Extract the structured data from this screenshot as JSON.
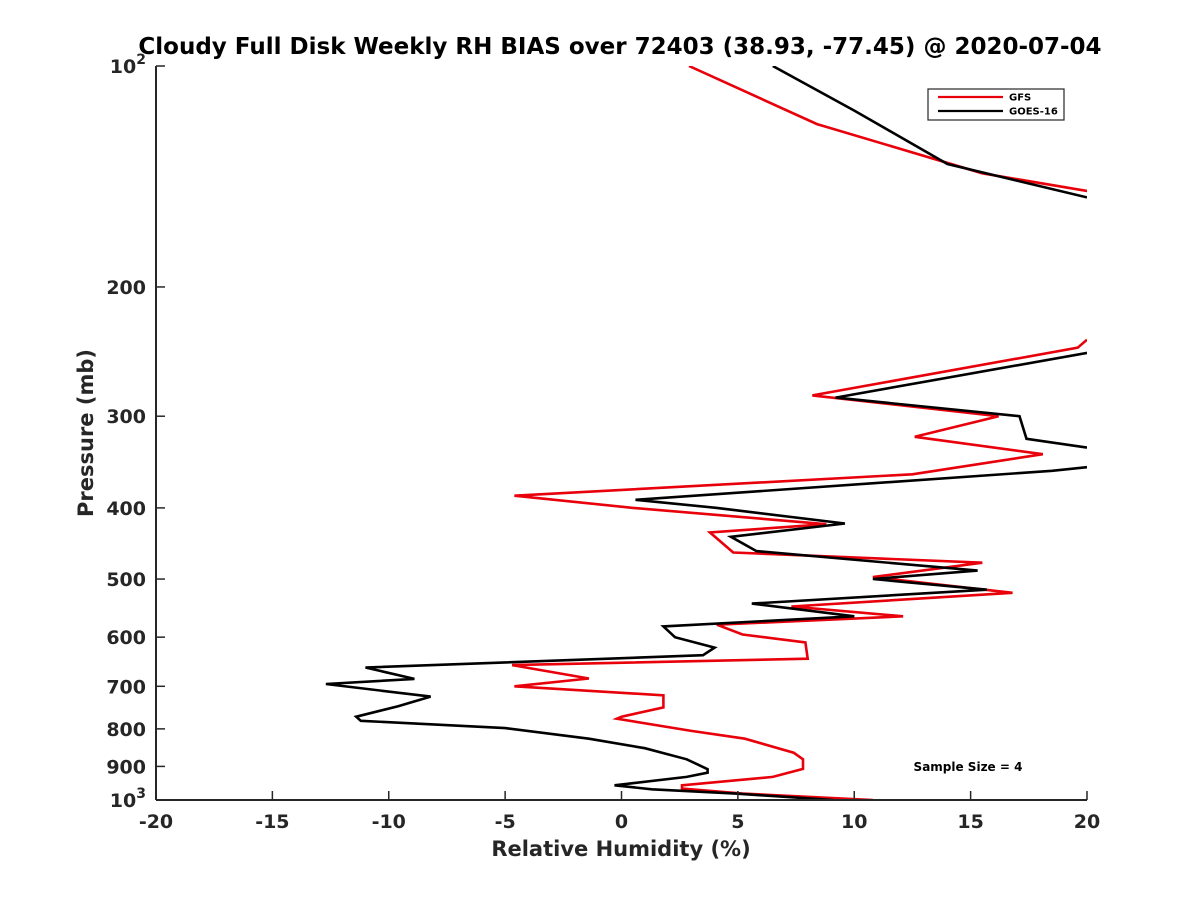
{
  "chart_data": {
    "type": "line",
    "title": "Cloudy Full Disk Weekly RH BIAS over 72403 (38.93, -77.45) @ 2020-07-04",
    "xlabel": "Relative Humidity (%)",
    "ylabel": "Pressure (mb)",
    "xlim": [
      -20,
      20
    ],
    "ylim": [
      100,
      1000
    ],
    "yscale": "log",
    "y_reversed": true,
    "grid": false,
    "legend_position": "top-right",
    "x_ticks": [
      {
        "value": -20,
        "label": "-20"
      },
      {
        "value": -15,
        "label": "-15"
      },
      {
        "value": -10,
        "label": "-10"
      },
      {
        "value": -5,
        "label": "-5"
      },
      {
        "value": 0,
        "label": "0"
      },
      {
        "value": 5,
        "label": "5"
      },
      {
        "value": 10,
        "label": "10"
      },
      {
        "value": 15,
        "label": "15"
      },
      {
        "value": 20,
        "label": "20"
      }
    ],
    "y_ticks": [
      {
        "value": 100,
        "base": "10",
        "exp": "2"
      },
      {
        "value": 200,
        "label": "200"
      },
      {
        "value": 300,
        "label": "300"
      },
      {
        "value": 400,
        "label": "400"
      },
      {
        "value": 500,
        "label": "500"
      },
      {
        "value": 600,
        "label": "600"
      },
      {
        "value": 700,
        "label": "700"
      },
      {
        "value": 800,
        "label": "800"
      },
      {
        "value": 900,
        "label": "900"
      },
      {
        "value": 1000,
        "base": "10",
        "exp": "3"
      }
    ],
    "series": [
      {
        "name": "GFS",
        "color": "#e8000b",
        "segments": [
          [
            [
              2.9,
              100
            ],
            [
              8.4,
              120
            ],
            [
              15.5,
              140
            ],
            [
              20,
              148
            ]
          ],
          [
            [
              20,
              236
            ],
            [
              19.6,
              242
            ],
            [
              8.2,
              281
            ],
            [
              16.2,
              300
            ],
            [
              12.6,
              320
            ],
            [
              18.1,
              338
            ],
            [
              12.5,
              360
            ],
            [
              -4.6,
              385
            ],
            [
              0.5,
              400
            ],
            [
              8.8,
              421
            ],
            [
              3.8,
              432
            ],
            [
              4.8,
              460
            ],
            [
              15.5,
              475
            ],
            [
              10.8,
              497
            ],
            [
              16.8,
              522
            ],
            [
              7.3,
              545
            ],
            [
              12.1,
              562
            ],
            [
              4.1,
              577
            ],
            [
              5.2,
              595
            ],
            [
              7.9,
              610
            ],
            [
              8.0,
              642
            ],
            [
              -4.7,
              655
            ],
            [
              -1.4,
              683
            ],
            [
              -4.6,
              700
            ],
            [
              1.8,
              720
            ],
            [
              1.8,
              748
            ],
            [
              0,
              770
            ],
            [
              -0.2,
              775
            ],
            [
              3.0,
              805
            ],
            [
              5.3,
              825
            ],
            [
              7.4,
              862
            ],
            [
              7.8,
              880
            ],
            [
              7.8,
              907
            ],
            [
              6.5,
              930
            ],
            [
              2.6,
              955
            ],
            [
              2.6,
              965
            ],
            [
              5.2,
              980
            ],
            [
              10.8,
              1000
            ]
          ]
        ]
      },
      {
        "name": "GOES-16",
        "color": "#000000",
        "segments": [
          [
            [
              6.5,
              100
            ],
            [
              10.0,
              115
            ],
            [
              14.0,
              136
            ],
            [
              20,
              151
            ]
          ],
          [
            [
              20,
              246
            ],
            [
              9.2,
              283
            ],
            [
              17.1,
              300
            ],
            [
              17.4,
              322
            ],
            [
              20,
              331
            ]
          ],
          [
            [
              20,
              352
            ],
            [
              18.5,
              356
            ],
            [
              0.6,
              390
            ],
            [
              4.1,
              400
            ],
            [
              9.6,
              420
            ],
            [
              4.7,
              438
            ],
            [
              5.8,
              458
            ],
            [
              15.3,
              487
            ],
            [
              10.8,
              500
            ],
            [
              15.7,
              517
            ],
            [
              5.6,
              540
            ],
            [
              10.0,
              562
            ],
            [
              1.8,
              580
            ],
            [
              2.3,
              600
            ],
            [
              4.0,
              620
            ],
            [
              3.5,
              635
            ],
            [
              -11.0,
              660
            ],
            [
              -8.9,
              684
            ],
            [
              -12.7,
              695
            ],
            [
              -8.2,
              723
            ],
            [
              -9.6,
              745
            ],
            [
              -11.4,
              770
            ],
            [
              -11.2,
              780
            ],
            [
              -5.0,
              798
            ],
            [
              -1.4,
              825
            ],
            [
              1.0,
              850
            ],
            [
              2.8,
              880
            ],
            [
              3.7,
              908
            ],
            [
              3.7,
              918
            ],
            [
              2.8,
              930
            ],
            [
              -0.3,
              955
            ],
            [
              1.3,
              967
            ],
            [
              4.9,
              980
            ],
            [
              9.1,
              1000
            ]
          ]
        ]
      }
    ],
    "annotation": "Sample Size = 4"
  }
}
